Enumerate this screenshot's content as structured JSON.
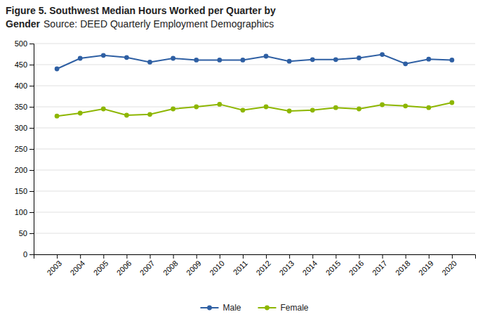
{
  "chart_data": {
    "type": "line",
    "title": "Figure 5. Southwest Median Hours Worked per Quarter by\nGender",
    "subtitle": "Source: DEED Quarterly Employment Demographics",
    "x": [
      2003,
      2004,
      2005,
      2006,
      2007,
      2008,
      2009,
      2010,
      2011,
      2012,
      2013,
      2014,
      2015,
      2016,
      2017,
      2018,
      2019,
      2020
    ],
    "series": [
      {
        "name": "Male",
        "color": "#2E5FA3",
        "marker": "circle",
        "values": [
          440,
          465,
          472,
          467,
          456,
          465,
          461,
          461,
          461,
          470,
          458,
          462,
          462,
          466,
          474,
          452,
          463,
          461
        ]
      },
      {
        "name": "Female",
        "color": "#8DB600",
        "marker": "circle",
        "values": [
          328,
          335,
          345,
          330,
          332,
          345,
          350,
          356,
          342,
          350,
          340,
          342,
          348,
          345,
          355,
          352,
          348,
          360
        ]
      }
    ],
    "xlim": [
      2002,
      2021
    ],
    "xticks": [
      2003,
      2004,
      2005,
      2006,
      2007,
      2008,
      2009,
      2010,
      2011,
      2012,
      2013,
      2014,
      2015,
      2016,
      2017,
      2018,
      2019,
      2020
    ],
    "ylim": [
      0,
      500
    ],
    "yticks": [
      0,
      50,
      100,
      150,
      200,
      250,
      300,
      350,
      400,
      450,
      500
    ],
    "grid": true,
    "legend": "bottom"
  }
}
